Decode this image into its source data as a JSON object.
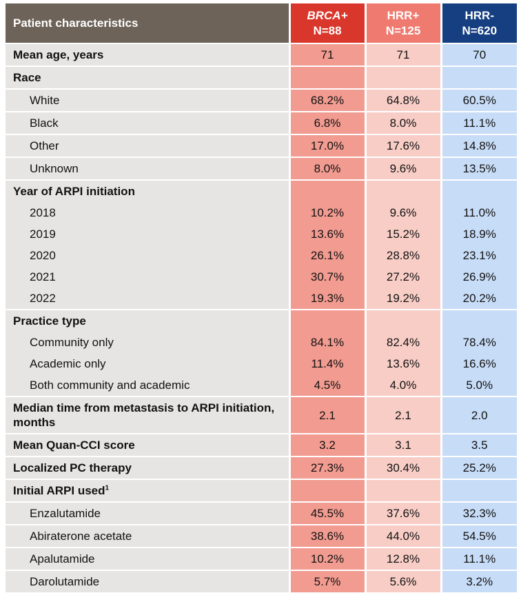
{
  "header": {
    "label": "Patient characteristics",
    "groups": [
      {
        "name": "BRCA+",
        "n": "N=88"
      },
      {
        "name": "HRR+",
        "n": "N=125"
      },
      {
        "name": "HRR-",
        "n": "N=620"
      }
    ]
  },
  "rows": [
    {
      "label": "Mean age, years",
      "values": [
        "71",
        "71",
        "70"
      ]
    },
    {
      "label": "Race",
      "values": [
        "",
        "",
        ""
      ]
    },
    {
      "label": "White",
      "values": [
        "68.2%",
        "64.8%",
        "60.5%"
      ]
    },
    {
      "label": "Black",
      "values": [
        "6.8%",
        "8.0%",
        "11.1%"
      ]
    },
    {
      "label": "Other",
      "values": [
        "17.0%",
        "17.6%",
        "14.8%"
      ]
    },
    {
      "label": "Unknown",
      "values": [
        "8.0%",
        "9.6%",
        "13.5%"
      ]
    },
    {
      "label": "Year of ARPI initiation",
      "values": [
        "",
        "",
        ""
      ]
    },
    {
      "label": "2018",
      "values": [
        "10.2%",
        "9.6%",
        "11.0%"
      ]
    },
    {
      "label": "2019",
      "values": [
        "13.6%",
        "15.2%",
        "18.9%"
      ]
    },
    {
      "label": "2020",
      "values": [
        "26.1%",
        "28.8%",
        "23.1%"
      ]
    },
    {
      "label": "2021",
      "values": [
        "30.7%",
        "27.2%",
        "26.9%"
      ]
    },
    {
      "label": "2022",
      "values": [
        "19.3%",
        "19.2%",
        "20.2%"
      ]
    },
    {
      "label": "Practice type",
      "values": [
        "",
        "",
        ""
      ]
    },
    {
      "label": "Community only",
      "values": [
        "84.1%",
        "82.4%",
        "78.4%"
      ]
    },
    {
      "label": "Academic only",
      "values": [
        "11.4%",
        "13.6%",
        "16.6%"
      ]
    },
    {
      "label": "Both community and academic",
      "values": [
        "4.5%",
        "4.0%",
        "5.0%"
      ]
    },
    {
      "label": "Median time from metastasis to ARPI initiation, months",
      "values": [
        "2.1",
        "2.1",
        "2.0"
      ]
    },
    {
      "label": "Mean Quan-CCI score",
      "values": [
        "3.2",
        "3.1",
        "3.5"
      ]
    },
    {
      "label": "Localized PC therapy",
      "values": [
        "27.3%",
        "30.4%",
        "25.2%"
      ]
    },
    {
      "label": "Initial ARPI used",
      "footnote": "1",
      "values": [
        "",
        "",
        ""
      ]
    },
    {
      "label": "Enzalutamide",
      "values": [
        "45.5%",
        "37.6%",
        "32.3%"
      ]
    },
    {
      "label": "Abiraterone acetate",
      "values": [
        "38.6%",
        "44.0%",
        "54.5%"
      ]
    },
    {
      "label": "Apalutamide",
      "values": [
        "10.2%",
        "12.8%",
        "11.1%"
      ]
    },
    {
      "label": "Darolutamide",
      "values": [
        "5.7%",
        "5.6%",
        "3.2%"
      ]
    }
  ]
}
